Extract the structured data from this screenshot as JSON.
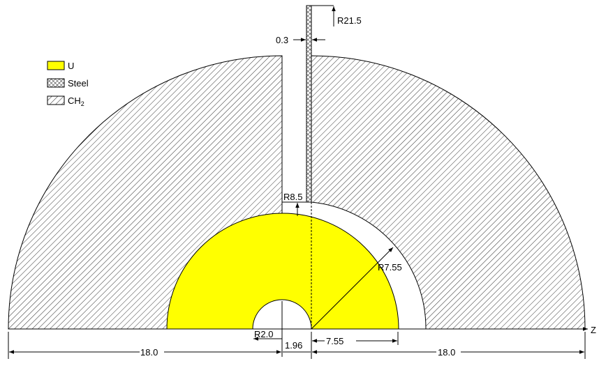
{
  "legend": [
    {
      "label": "U"
    },
    {
      "label": "Steel"
    },
    {
      "label": "CH",
      "subscript": "2"
    }
  ],
  "dimensions": {
    "steel_radius": "R21.5",
    "steel_thickness": "0.3",
    "cavity_radius": "R8.5",
    "u_radius": "R7.55",
    "hole_radius": "R2.0",
    "gap": "1.96",
    "u_width": "7.55",
    "left_width": "18.0",
    "right_width": "18.0"
  },
  "axis": "Z"
}
